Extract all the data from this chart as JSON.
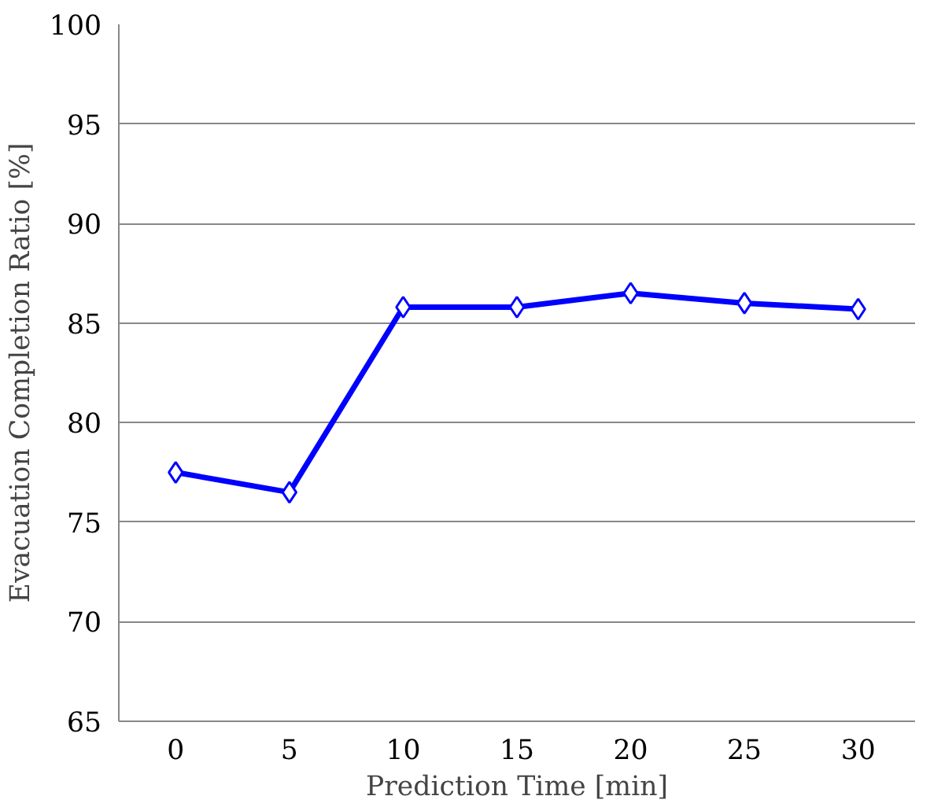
{
  "chart_data": {
    "type": "line",
    "xlabel": "Prediction Time [min]",
    "ylabel": "Evacuation Completion Ratio [%]",
    "categories": [
      "0",
      "5",
      "10",
      "15",
      "20",
      "25",
      "30"
    ],
    "series": [
      {
        "color": "#0000ff",
        "values": [
          77.5,
          76.5,
          85.8,
          85.8,
          86.5,
          86.0,
          85.7
        ]
      }
    ],
    "ylim": [
      65,
      100
    ],
    "yticks": [
      65,
      70,
      75,
      80,
      85,
      90,
      95,
      100
    ],
    "grid": "y",
    "marker": "diamond",
    "line_style": "solid"
  }
}
